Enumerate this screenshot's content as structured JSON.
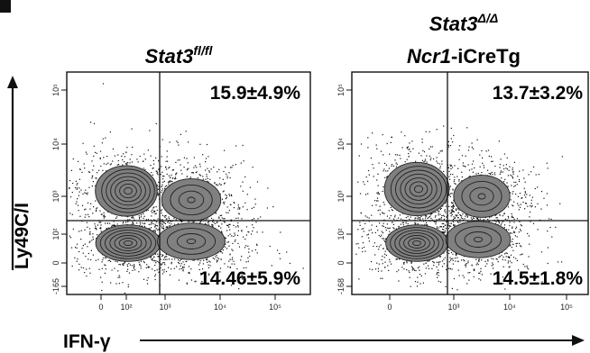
{
  "chart_data": [
    {
      "type": "scatter",
      "plot_style": "flow-cytometry contour",
      "title": {
        "italic": "Stat3",
        "superscript": "fl/fl",
        "line2_italic": "",
        "line2_rest": ""
      },
      "xlabel": "IFN-γ",
      "ylabel": "Ly49C/I",
      "x_tick_labels": [
        "0",
        "10²",
        "10³",
        "10⁴",
        "10⁵"
      ],
      "y_tick_labels": [
        "-165",
        "0",
        "10²",
        "10³",
        "10⁴",
        "10⁵"
      ],
      "quadrant_values": {
        "upper_right": "15.9±4.9%",
        "lower_right": "14.46±5.9%"
      }
    },
    {
      "type": "scatter",
      "plot_style": "flow-cytometry contour",
      "title": {
        "italic": "Stat3",
        "superscript": "Δ/Δ",
        "line2_italic": "Ncr1",
        "line2_rest": "-iCreTg"
      },
      "xlabel": "IFN-γ",
      "ylabel": "Ly49C/I",
      "x_tick_labels": [
        "0",
        "10³",
        "10⁴",
        "10⁵"
      ],
      "y_tick_labels": [
        "-168",
        "0",
        "10²",
        "10³",
        "10⁴",
        "10⁵"
      ],
      "quadrant_values": {
        "upper_right": "13.7±3.2%",
        "lower_right": "14.5±1.8%"
      }
    }
  ],
  "colors": {
    "ink": "#111111",
    "contour_fill": "#808080",
    "contour_line": "#222222"
  }
}
